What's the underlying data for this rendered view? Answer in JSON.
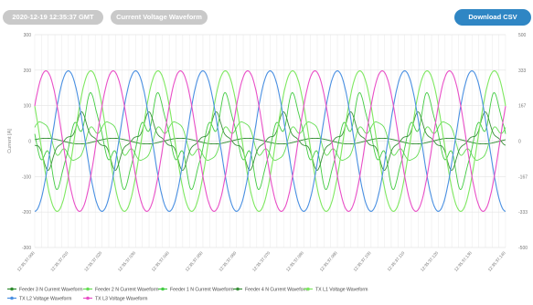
{
  "header": {
    "timestamp": "2020-12-19 12:35:37 GMT",
    "view_title": "Current Voltage Waveform",
    "download_label": "Download CSV"
  },
  "chart_data": {
    "type": "line",
    "ylabel": "Current [A]",
    "y_left": {
      "min": -300,
      "max": 300,
      "ticks": [
        300,
        200,
        100,
        0,
        -100,
        -200,
        -300
      ]
    },
    "y_right": {
      "min": -500,
      "max": 500,
      "ticks": [
        500,
        333,
        167,
        0,
        -167,
        -333,
        -500
      ]
    },
    "x_range_ms": [
      0,
      140
    ],
    "x_tick_labels": [
      "12:35:37.000",
      "12:35:37.010",
      "12:35:37.020",
      "12:35:37.030",
      "12:35:37.040",
      "12:35:37.050",
      "12:35:37.060",
      "12:35:37.070",
      "12:35:37.080",
      "12:35:37.090",
      "12:35:37.100",
      "12:35:37.110",
      "12:35:37.120",
      "12:35:37.130",
      "12:35:37.140"
    ],
    "frequency_hz": 50,
    "grid": true,
    "legend_position": "bottom",
    "series": [
      {
        "name": "Feeder 3 N Current Waveform",
        "color": "#2e8b2e",
        "axis": "left",
        "amplitude": 8,
        "phase_deg": 30,
        "kind": "current-small"
      },
      {
        "name": "Feeder 2 N Current Waveform",
        "color": "#66dd55",
        "axis": "left",
        "amplitude": 50,
        "phase_deg": 80,
        "kind": "current-harmonic"
      },
      {
        "name": "Feeder 1 N Current Waveform",
        "color": "#44cc44",
        "axis": "left",
        "amplitude": 100,
        "phase_deg": 160,
        "kind": "current-harmonic"
      },
      {
        "name": "Feeder 4 N Current Waveform",
        "color": "#3a8f3a",
        "axis": "left",
        "amplitude": 55,
        "phase_deg": 200,
        "kind": "current-harmonic"
      },
      {
        "name": "TX L1 Voltage Waveform",
        "color": "#7ee860",
        "axis": "right",
        "amplitude": 330,
        "phase_deg": 150,
        "kind": "voltage"
      },
      {
        "name": "TX L2 Voltage Waveform",
        "color": "#4a90e2",
        "axis": "right",
        "amplitude": 330,
        "phase_deg": 270,
        "kind": "voltage"
      },
      {
        "name": "TX L3 Voltage Waveform",
        "color": "#e94fc7",
        "axis": "right",
        "amplitude": 330,
        "phase_deg": 30,
        "kind": "voltage"
      }
    ]
  }
}
